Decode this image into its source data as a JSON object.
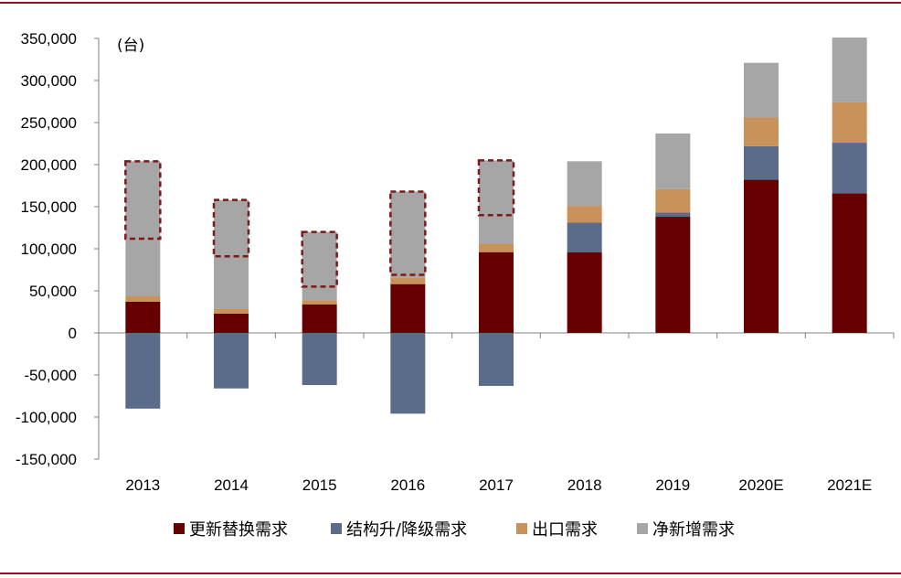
{
  "chart_data": {
    "type": "bar",
    "stacked": true,
    "unit_label": "(台)",
    "categories": [
      "2013",
      "2014",
      "2015",
      "2016",
      "2017",
      "2018",
      "2019",
      "2020E",
      "2021E"
    ],
    "series": [
      {
        "name": "更新替换需求",
        "color": "#660000",
        "values": [
          37000,
          23000,
          34000,
          58000,
          96000,
          96000,
          138000,
          182000,
          166000
        ]
      },
      {
        "name": "结构升/降级需求",
        "color": "#5b6b8a",
        "values": [
          -90000,
          -66000,
          -62000,
          -96000,
          -63000,
          35000,
          5000,
          40000,
          60000
        ]
      },
      {
        "name": "出口需求",
        "color": "#c8925a",
        "values": [
          7000,
          6000,
          5000,
          8000,
          10000,
          20000,
          28000,
          34000,
          48000
        ]
      },
      {
        "name": "净新增需求",
        "color": "#a6a6a6",
        "values": [
          160000,
          129000,
          81000,
          102000,
          99000,
          53000,
          66000,
          65000,
          77000
        ]
      }
    ],
    "highlighted_ranges": [
      {
        "category": "2013",
        "from": 112000,
        "to": 204000
      },
      {
        "category": "2014",
        "from": 91000,
        "to": 158000
      },
      {
        "category": "2015",
        "from": 55000,
        "to": 120000
      },
      {
        "category": "2016",
        "from": 69000,
        "to": 168000
      },
      {
        "category": "2017",
        "from": 140000,
        "to": 205000
      }
    ],
    "ylim": [
      -150000,
      350000
    ],
    "yticks": [
      350000,
      300000,
      250000,
      200000,
      150000,
      100000,
      50000,
      0,
      -50000,
      -100000,
      -150000
    ],
    "ytick_labels": [
      "350,000",
      "300,000",
      "250,000",
      "200,000",
      "150,000",
      "100,000",
      "50,000",
      "0",
      "-50,000",
      "-100,000",
      "-150,000"
    ],
    "highlight_color": "#7a1a1a",
    "legend_position": "bottom",
    "grid": false
  }
}
